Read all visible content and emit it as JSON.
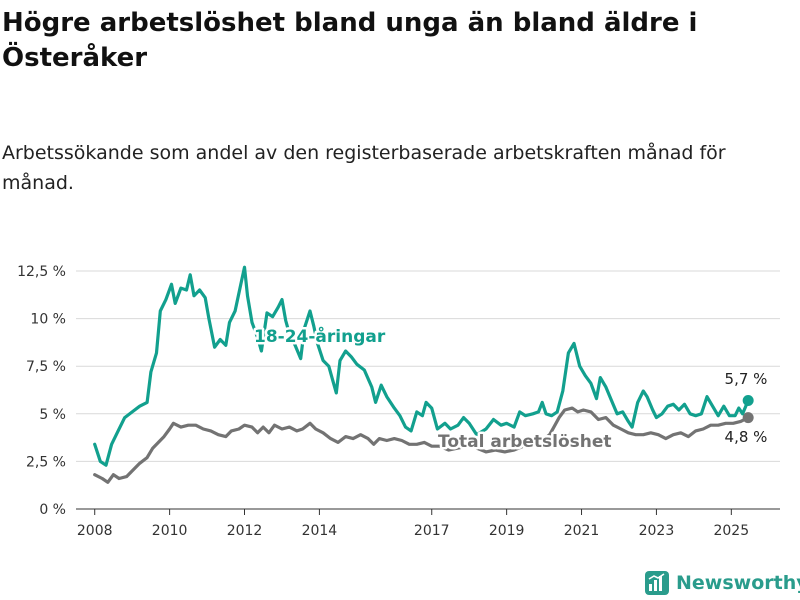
{
  "chart_data": {
    "type": "line",
    "title": "Högre arbetslöshet bland unga än bland äldre i Österåker",
    "subtitle": "Arbetssökande som andel av den registerbaserade arbetskraften månad för månad.",
    "y_ticks": [
      "0 %",
      "2,5 %",
      "5 %",
      "7,5 %",
      "10 %",
      "12,5 %"
    ],
    "y_tick_values": [
      0,
      2.5,
      5,
      7.5,
      10,
      12.5
    ],
    "ylim": [
      0,
      12.5
    ],
    "x_ticks": [
      "2008",
      "2010",
      "2012",
      "2014",
      "2017",
      "2019",
      "2021",
      "2023",
      "2025"
    ],
    "x_tick_values": [
      2008,
      2010,
      2012,
      2014,
      2017,
      2019,
      2021,
      2023,
      2025
    ],
    "xlim": [
      2007.5,
      2026.3
    ],
    "grid": "horizontal",
    "series": [
      {
        "name": "18-24-åringar",
        "color": "#12a08e",
        "end_label": "5,7 %",
        "points": [
          [
            2008.0,
            3.4
          ],
          [
            2008.15,
            2.5
          ],
          [
            2008.3,
            2.3
          ],
          [
            2008.45,
            3.4
          ],
          [
            2008.6,
            4.0
          ],
          [
            2008.8,
            4.8
          ],
          [
            2009.0,
            5.1
          ],
          [
            2009.2,
            5.4
          ],
          [
            2009.4,
            5.6
          ],
          [
            2009.5,
            7.2
          ],
          [
            2009.65,
            8.2
          ],
          [
            2009.75,
            10.4
          ],
          [
            2009.9,
            11.0
          ],
          [
            2010.05,
            11.8
          ],
          [
            2010.15,
            10.8
          ],
          [
            2010.3,
            11.6
          ],
          [
            2010.45,
            11.5
          ],
          [
            2010.55,
            12.3
          ],
          [
            2010.65,
            11.2
          ],
          [
            2010.8,
            11.5
          ],
          [
            2010.95,
            11.1
          ],
          [
            2011.05,
            10.0
          ],
          [
            2011.2,
            8.5
          ],
          [
            2011.35,
            8.9
          ],
          [
            2011.5,
            8.6
          ],
          [
            2011.6,
            9.8
          ],
          [
            2011.75,
            10.4
          ],
          [
            2011.9,
            11.8
          ],
          [
            2012.0,
            12.7
          ],
          [
            2012.08,
            11.2
          ],
          [
            2012.2,
            9.8
          ],
          [
            2012.35,
            9.0
          ],
          [
            2012.45,
            8.3
          ],
          [
            2012.6,
            10.3
          ],
          [
            2012.75,
            10.1
          ],
          [
            2012.9,
            10.6
          ],
          [
            2013.0,
            11.0
          ],
          [
            2013.1,
            9.9
          ],
          [
            2013.2,
            9.2
          ],
          [
            2013.35,
            8.6
          ],
          [
            2013.5,
            7.9
          ],
          [
            2013.6,
            9.5
          ],
          [
            2013.75,
            10.4
          ],
          [
            2013.85,
            9.6
          ],
          [
            2013.95,
            8.7
          ],
          [
            2014.1,
            7.8
          ],
          [
            2014.25,
            7.5
          ],
          [
            2014.35,
            6.8
          ],
          [
            2014.45,
            6.1
          ],
          [
            2014.55,
            7.8
          ],
          [
            2014.7,
            8.3
          ],
          [
            2014.85,
            8.0
          ],
          [
            2015.0,
            7.6
          ],
          [
            2015.2,
            7.3
          ],
          [
            2015.4,
            6.4
          ],
          [
            2015.5,
            5.6
          ],
          [
            2015.65,
            6.5
          ],
          [
            2015.8,
            5.9
          ],
          [
            2016.0,
            5.3
          ],
          [
            2016.15,
            4.9
          ],
          [
            2016.3,
            4.3
          ],
          [
            2016.45,
            4.1
          ],
          [
            2016.6,
            5.1
          ],
          [
            2016.75,
            4.9
          ],
          [
            2016.85,
            5.6
          ],
          [
            2017.0,
            5.3
          ],
          [
            2017.15,
            4.2
          ],
          [
            2017.35,
            4.5
          ],
          [
            2017.5,
            4.2
          ],
          [
            2017.7,
            4.4
          ],
          [
            2017.85,
            4.8
          ],
          [
            2018.0,
            4.5
          ],
          [
            2018.2,
            3.9
          ],
          [
            2018.45,
            4.2
          ],
          [
            2018.65,
            4.7
          ],
          [
            2018.85,
            4.4
          ],
          [
            2019.0,
            4.5
          ],
          [
            2019.2,
            4.3
          ],
          [
            2019.35,
            5.1
          ],
          [
            2019.5,
            4.9
          ],
          [
            2019.7,
            5.0
          ],
          [
            2019.85,
            5.1
          ],
          [
            2019.95,
            5.6
          ],
          [
            2020.05,
            5.0
          ],
          [
            2020.2,
            4.9
          ],
          [
            2020.35,
            5.1
          ],
          [
            2020.5,
            6.2
          ],
          [
            2020.65,
            8.2
          ],
          [
            2020.8,
            8.7
          ],
          [
            2020.95,
            7.5
          ],
          [
            2021.1,
            7.0
          ],
          [
            2021.25,
            6.6
          ],
          [
            2021.4,
            5.8
          ],
          [
            2021.5,
            6.9
          ],
          [
            2021.65,
            6.4
          ],
          [
            2021.8,
            5.7
          ],
          [
            2021.95,
            5.0
          ],
          [
            2022.1,
            5.1
          ],
          [
            2022.25,
            4.6
          ],
          [
            2022.35,
            4.3
          ],
          [
            2022.5,
            5.6
          ],
          [
            2022.65,
            6.2
          ],
          [
            2022.75,
            5.9
          ],
          [
            2022.9,
            5.2
          ],
          [
            2023.0,
            4.8
          ],
          [
            2023.15,
            5.0
          ],
          [
            2023.3,
            5.4
          ],
          [
            2023.45,
            5.5
          ],
          [
            2023.6,
            5.2
          ],
          [
            2023.75,
            5.5
          ],
          [
            2023.9,
            5.0
          ],
          [
            2024.05,
            4.9
          ],
          [
            2024.2,
            5.0
          ],
          [
            2024.35,
            5.9
          ],
          [
            2024.5,
            5.4
          ],
          [
            2024.65,
            4.9
          ],
          [
            2024.8,
            5.4
          ],
          [
            2024.95,
            4.9
          ],
          [
            2025.1,
            4.9
          ],
          [
            2025.2,
            5.3
          ],
          [
            2025.3,
            5.0
          ],
          [
            2025.45,
            5.7
          ]
        ]
      },
      {
        "name": "Total arbetslöshet",
        "color": "#737373",
        "end_label": "4,8 %",
        "points": [
          [
            2008.0,
            1.8
          ],
          [
            2008.2,
            1.6
          ],
          [
            2008.35,
            1.4
          ],
          [
            2008.5,
            1.8
          ],
          [
            2008.65,
            1.6
          ],
          [
            2008.85,
            1.7
          ],
          [
            2009.0,
            2.0
          ],
          [
            2009.2,
            2.4
          ],
          [
            2009.4,
            2.7
          ],
          [
            2009.55,
            3.2
          ],
          [
            2009.7,
            3.5
          ],
          [
            2009.85,
            3.8
          ],
          [
            2010.0,
            4.2
          ],
          [
            2010.1,
            4.5
          ],
          [
            2010.3,
            4.3
          ],
          [
            2010.5,
            4.4
          ],
          [
            2010.7,
            4.4
          ],
          [
            2010.9,
            4.2
          ],
          [
            2011.1,
            4.1
          ],
          [
            2011.3,
            3.9
          ],
          [
            2011.5,
            3.8
          ],
          [
            2011.65,
            4.1
          ],
          [
            2011.85,
            4.2
          ],
          [
            2012.0,
            4.4
          ],
          [
            2012.2,
            4.3
          ],
          [
            2012.35,
            4.0
          ],
          [
            2012.5,
            4.3
          ],
          [
            2012.65,
            4.0
          ],
          [
            2012.8,
            4.4
          ],
          [
            2013.0,
            4.2
          ],
          [
            2013.2,
            4.3
          ],
          [
            2013.4,
            4.1
          ],
          [
            2013.55,
            4.2
          ],
          [
            2013.75,
            4.5
          ],
          [
            2013.9,
            4.2
          ],
          [
            2014.1,
            4.0
          ],
          [
            2014.3,
            3.7
          ],
          [
            2014.5,
            3.5
          ],
          [
            2014.7,
            3.8
          ],
          [
            2014.9,
            3.7
          ],
          [
            2015.1,
            3.9
          ],
          [
            2015.3,
            3.7
          ],
          [
            2015.45,
            3.4
          ],
          [
            2015.6,
            3.7
          ],
          [
            2015.8,
            3.6
          ],
          [
            2016.0,
            3.7
          ],
          [
            2016.2,
            3.6
          ],
          [
            2016.4,
            3.4
          ],
          [
            2016.6,
            3.4
          ],
          [
            2016.8,
            3.5
          ],
          [
            2017.0,
            3.3
          ],
          [
            2017.2,
            3.3
          ],
          [
            2017.45,
            3.1
          ],
          [
            2017.7,
            3.2
          ],
          [
            2017.95,
            3.3
          ],
          [
            2018.2,
            3.2
          ],
          [
            2018.45,
            3.0
          ],
          [
            2018.7,
            3.1
          ],
          [
            2018.95,
            3.0
          ],
          [
            2019.2,
            3.1
          ],
          [
            2019.45,
            3.3
          ],
          [
            2019.7,
            3.4
          ],
          [
            2019.95,
            3.6
          ],
          [
            2020.15,
            3.9
          ],
          [
            2020.4,
            4.8
          ],
          [
            2020.55,
            5.2
          ],
          [
            2020.75,
            5.3
          ],
          [
            2020.9,
            5.1
          ],
          [
            2021.05,
            5.2
          ],
          [
            2021.25,
            5.1
          ],
          [
            2021.45,
            4.7
          ],
          [
            2021.65,
            4.8
          ],
          [
            2021.85,
            4.4
          ],
          [
            2022.05,
            4.2
          ],
          [
            2022.25,
            4.0
          ],
          [
            2022.45,
            3.9
          ],
          [
            2022.65,
            3.9
          ],
          [
            2022.85,
            4.0
          ],
          [
            2023.05,
            3.9
          ],
          [
            2023.25,
            3.7
          ],
          [
            2023.45,
            3.9
          ],
          [
            2023.65,
            4.0
          ],
          [
            2023.85,
            3.8
          ],
          [
            2024.05,
            4.1
          ],
          [
            2024.25,
            4.2
          ],
          [
            2024.45,
            4.4
          ],
          [
            2024.65,
            4.4
          ],
          [
            2024.85,
            4.5
          ],
          [
            2025.05,
            4.5
          ],
          [
            2025.25,
            4.6
          ],
          [
            2025.45,
            4.8
          ]
        ]
      }
    ]
  },
  "brand": {
    "name": "Newsworthy",
    "icon": "newsworthy-logo-icon",
    "color": "#2a9c8c"
  }
}
